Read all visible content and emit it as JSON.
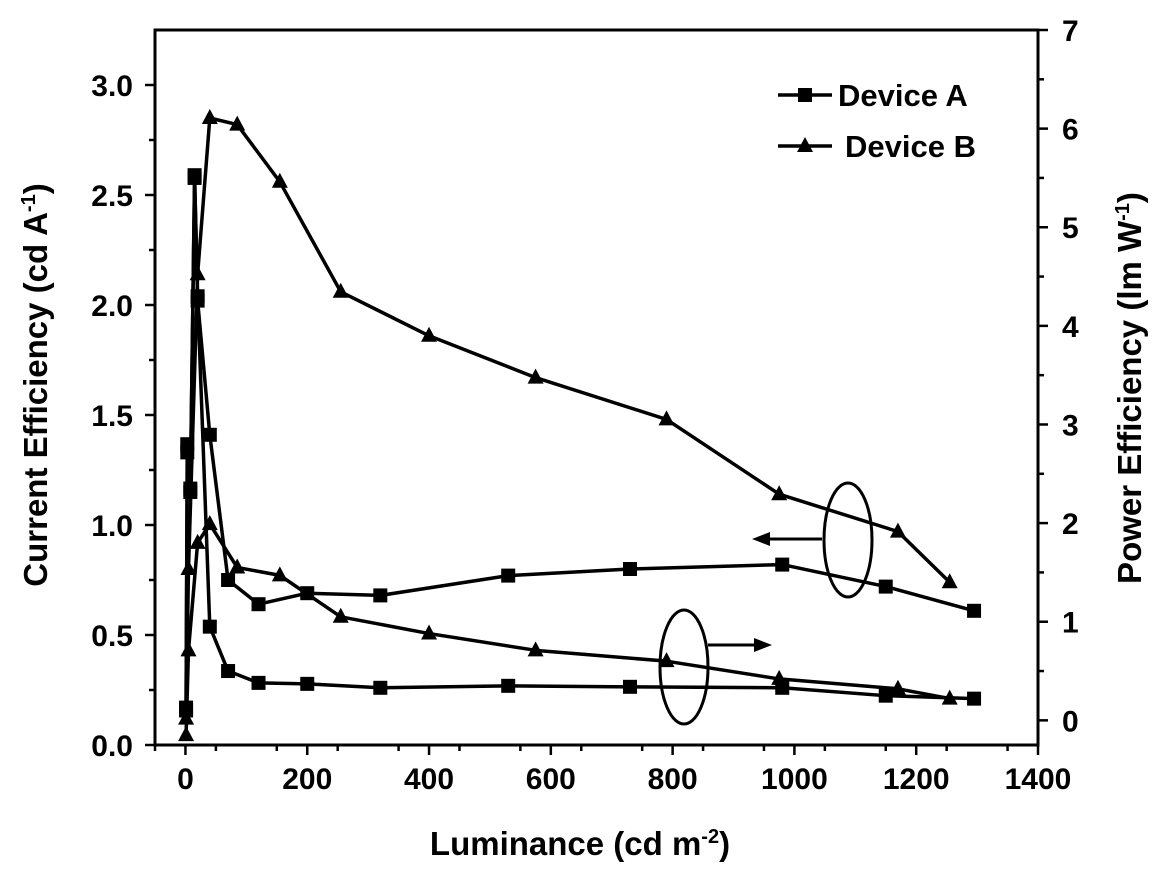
{
  "chart_data": {
    "type": "line",
    "xlabel": "Luminance (cd m",
    "xlabel_sup": "-2",
    "xlabel_end": ")",
    "y_left_label": "Current Efficiency (cd A",
    "y_left_label_sup": "-1",
    "y_left_label_end": ")",
    "y_right_label": "Power Efficiency (lm W",
    "y_right_label_sup": "-1",
    "y_right_label_end": ")",
    "xlim": [
      -50,
      1400
    ],
    "y_left_lim": [
      0,
      3.25
    ],
    "y_right_lim": [
      -0.25,
      7
    ],
    "x_ticks": [
      0,
      200,
      400,
      600,
      800,
      1000,
      1200,
      1400
    ],
    "y_left_ticks": [
      0.0,
      0.5,
      1.0,
      1.5,
      2.0,
      2.5,
      3.0
    ],
    "y_left_tick_labels": [
      "0.0",
      "0.5",
      "1.0",
      "1.5",
      "2.0",
      "2.5",
      "3.0"
    ],
    "y_right_ticks": [
      0,
      1,
      2,
      3,
      4,
      5,
      6,
      7
    ],
    "legend_position": "top-right",
    "legend": [
      {
        "name": "Device A",
        "marker": "square"
      },
      {
        "name": "Device B",
        "marker": "triangle"
      }
    ],
    "series": [
      {
        "name": "Device A",
        "metric": "Current Efficiency",
        "axis": "left",
        "marker": "square",
        "x": [
          1,
          3,
          8,
          15,
          20,
          40,
          70,
          120,
          200,
          320,
          530,
          730,
          980,
          1150,
          1295
        ],
        "y": [
          0.17,
          1.33,
          1.15,
          2.59,
          2.02,
          1.41,
          0.75,
          0.64,
          0.69,
          0.68,
          0.77,
          0.8,
          0.82,
          0.72,
          0.61
        ]
      },
      {
        "name": "Device A",
        "metric": "Power Efficiency",
        "axis": "right",
        "marker": "square",
        "x": [
          1,
          3,
          8,
          15,
          20,
          40,
          70,
          120,
          200,
          320,
          530,
          730,
          980,
          1150,
          1295
        ],
        "y": [
          0.1,
          2.8,
          2.35,
          5.5,
          4.3,
          0.95,
          0.5,
          0.38,
          0.37,
          0.33,
          0.35,
          0.34,
          0.33,
          0.25,
          0.22
        ]
      },
      {
        "name": "Device B",
        "metric": "Current Efficiency",
        "axis": "left",
        "marker": "triangle",
        "x": [
          1,
          5,
          20,
          40,
          85,
          155,
          255,
          400,
          575,
          790,
          975,
          1170,
          1255
        ],
        "y": [
          0.12,
          0.8,
          2.14,
          2.85,
          2.82,
          2.56,
          2.06,
          1.86,
          1.67,
          1.48,
          1.14,
          0.97,
          0.74
        ]
      },
      {
        "name": "Device B",
        "metric": "Power Efficiency",
        "axis": "right",
        "marker": "triangle",
        "x": [
          1,
          5,
          20,
          40,
          85,
          155,
          255,
          400,
          575,
          790,
          975,
          1170,
          1255
        ],
        "y": [
          -0.15,
          0.71,
          1.8,
          1.99,
          1.55,
          1.47,
          1.05,
          0.88,
          0.71,
          0.6,
          0.42,
          0.32,
          0.22
        ]
      }
    ]
  }
}
